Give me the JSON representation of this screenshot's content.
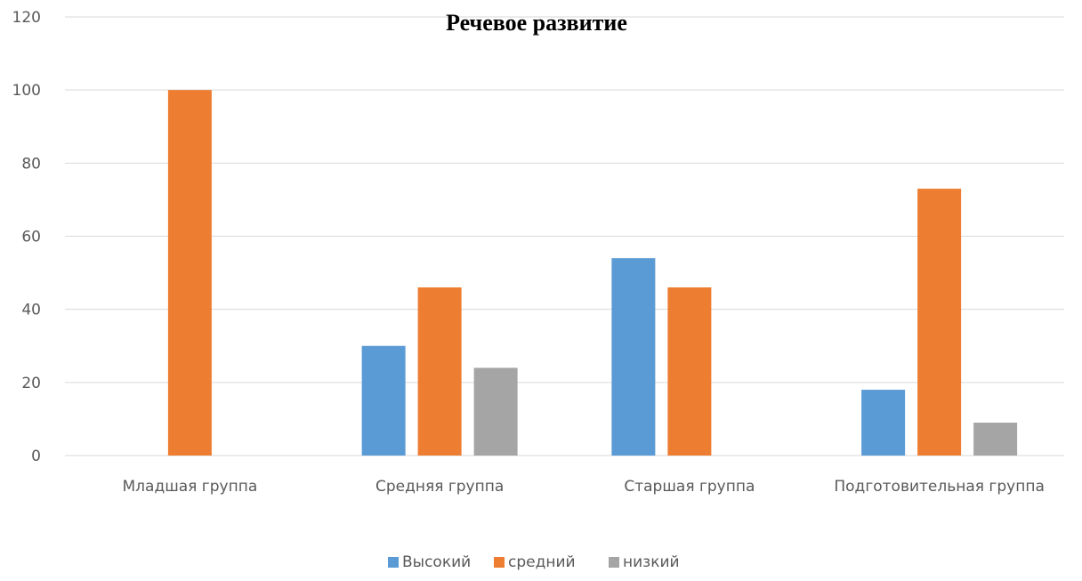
{
  "chart_data": {
    "type": "bar",
    "title": "Речевое развитие",
    "xlabel": "",
    "ylabel": "",
    "categories": [
      "Младшая группа",
      "Средняя группа",
      "Старшая группа",
      "Подготовительная группа"
    ],
    "series": [
      {
        "name": "Высокий",
        "values": [
          0,
          30,
          54,
          18
        ],
        "color": "#5b9bd5"
      },
      {
        "name": "средний",
        "values": [
          100,
          46,
          46,
          73
        ],
        "color": "#ed7d31"
      },
      {
        "name": "низкий",
        "values": [
          0,
          24,
          0,
          9
        ],
        "color": "#a5a5a5"
      }
    ],
    "ylim": [
      0,
      120
    ],
    "yticks": [
      "0",
      "20",
      "40",
      "60",
      "80",
      "100",
      "120"
    ],
    "grid": true,
    "legend_position": "bottom"
  }
}
